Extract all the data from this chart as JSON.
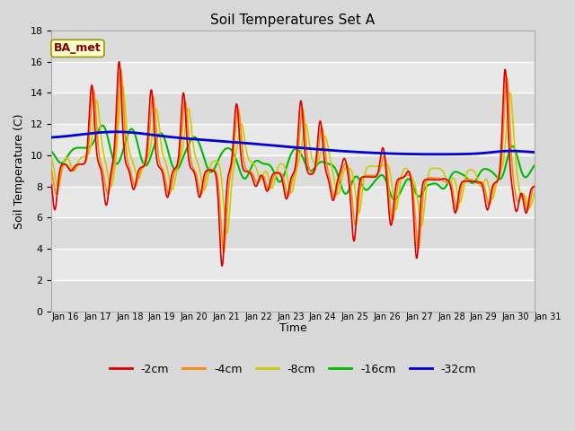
{
  "title": "Soil Temperatures Set A",
  "xlabel": "Time",
  "ylabel": "Soil Temperature (C)",
  "ylim": [
    0,
    18
  ],
  "yticks": [
    0,
    2,
    4,
    6,
    8,
    10,
    12,
    14,
    16,
    18
  ],
  "xtick_labels": [
    "Jan 16",
    "Jan 17",
    "Jan 18",
    "Jan 19",
    "Jan 20",
    "Jan 21",
    "Jan 22",
    "Jan 23",
    "Jan 24",
    "Jan 25",
    "Jan 26",
    "Jan 27",
    "Jan 28",
    "Jan 29",
    "Jan 30",
    "Jan 31"
  ],
  "legend_labels": [
    "-2cm",
    "-4cm",
    "-8cm",
    "-16cm",
    "-32cm"
  ],
  "line_colors": [
    "#dd0000",
    "#ff8800",
    "#cccc00",
    "#00bb00",
    "#0000dd"
  ],
  "bg_color": "#d8d8d8",
  "plot_bg": "#e8e8e8",
  "stripe_light": "#f0f0f0",
  "stripe_dark": "#d8d8d8",
  "annotation_text": "BA_met",
  "annotation_color": "#880000",
  "annotation_bg": "#ffffcc"
}
